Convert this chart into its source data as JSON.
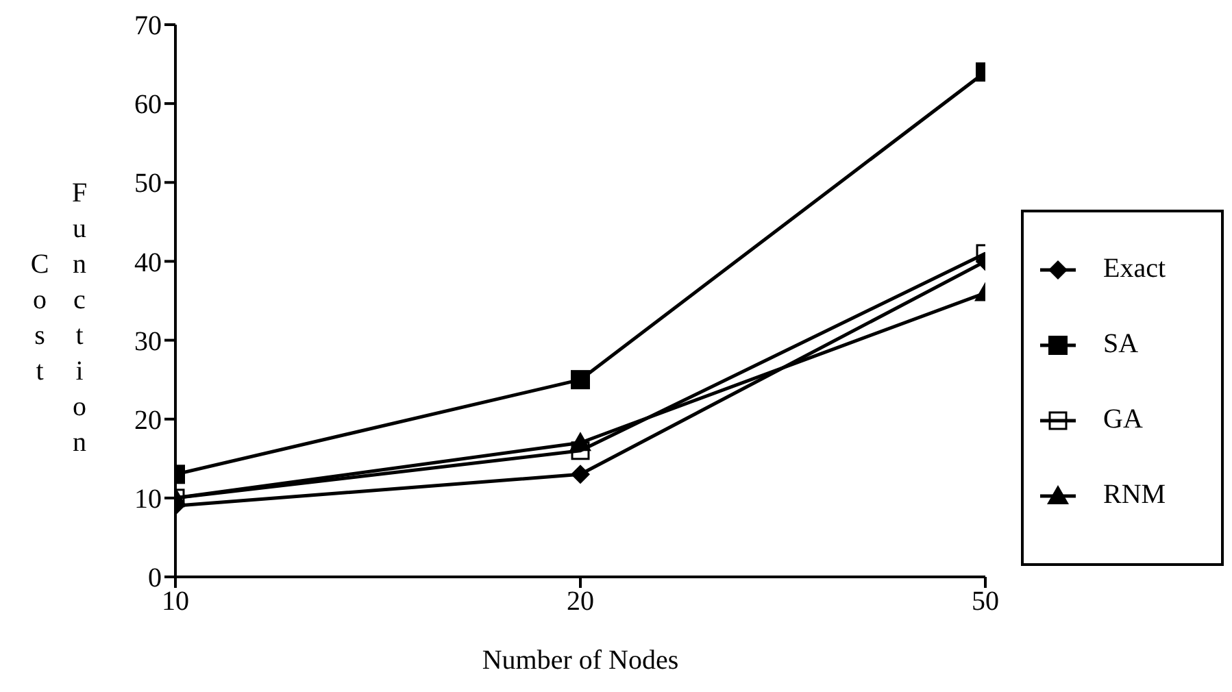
{
  "chart_data": {
    "type": "line",
    "xlabel": "Number of Nodes",
    "ylabel": "Cost Function",
    "categories": [
      "10",
      "20",
      "50"
    ],
    "series": [
      {
        "name": "Exact",
        "color": "#000000",
        "marker": "diamond",
        "values": [
          9,
          13,
          40
        ]
      },
      {
        "name": "SA",
        "color": "#000000",
        "marker": "square",
        "values": [
          13,
          25,
          64
        ]
      },
      {
        "name": "GA",
        "color": "#000000",
        "marker": "square-open",
        "values": [
          10,
          16,
          41
        ]
      },
      {
        "name": "RNM",
        "color": "#000000",
        "marker": "triangle",
        "values": [
          10,
          17,
          36
        ]
      }
    ],
    "ylim": [
      0,
      70
    ],
    "yticks": [
      0,
      10,
      20,
      30,
      40,
      50,
      60,
      70
    ],
    "grid": false,
    "legend": "right",
    "line_style": "solid"
  }
}
